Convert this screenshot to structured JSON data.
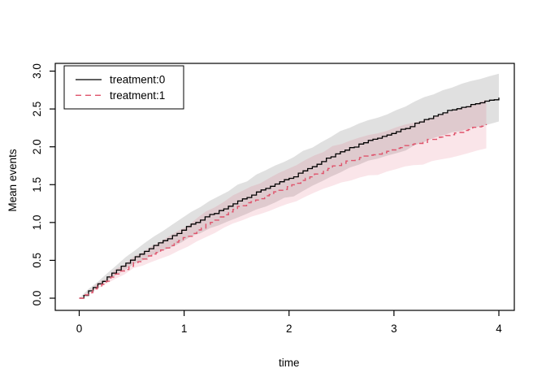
{
  "window": {
    "background": "#ffffff"
  },
  "chart_data": {
    "type": "line",
    "title": "",
    "xlabel": "time",
    "ylabel": "Mean events",
    "xlim": [
      0,
      4
    ],
    "ylim": [
      0,
      3
    ],
    "x_ticks": [
      0,
      1,
      2,
      3,
      4
    ],
    "x_tick_labels": [
      "0",
      "1",
      "2",
      "3",
      "4"
    ],
    "y_ticks": [
      0,
      0.5,
      1,
      1.5,
      2,
      2.5,
      3
    ],
    "y_tick_labels": [
      "0.0",
      "0.5",
      "1.0",
      "1.5",
      "2.0",
      "2.5",
      "3.0"
    ],
    "grid": false,
    "axis_color": "#000000",
    "text_color": "#000000",
    "legend": {
      "position": "top-left",
      "border": true,
      "entries": [
        "treatment:0",
        "treatment:1"
      ]
    },
    "series": [
      {
        "name": "treatment:0",
        "color": "#000000",
        "line_style": "solid",
        "band_color": "rgba(0,0,0,0.12)",
        "x": [
          0,
          0.5,
          1,
          1.5,
          2,
          2.5,
          3,
          3.5,
          4
        ],
        "mean": [
          0,
          0.52,
          0.92,
          1.28,
          1.58,
          1.95,
          2.19,
          2.47,
          2.65
        ],
        "ci_halfwidth": [
          0,
          0.09,
          0.16,
          0.21,
          0.25,
          0.27,
          0.28,
          0.3,
          0.32
        ]
      },
      {
        "name": "treatment:1",
        "color": "#DF536B",
        "line_style": "dashed",
        "band_color": "rgba(223,83,107,0.15)",
        "x": [
          0,
          0.5,
          1,
          1.5,
          2,
          2.5,
          3,
          3.5,
          3.88
        ],
        "mean": [
          0,
          0.45,
          0.8,
          1.2,
          1.48,
          1.79,
          1.97,
          2.15,
          2.3
        ],
        "ci_halfwidth": [
          0,
          0.08,
          0.14,
          0.19,
          0.23,
          0.26,
          0.28,
          0.3,
          0.32
        ]
      }
    ]
  }
}
